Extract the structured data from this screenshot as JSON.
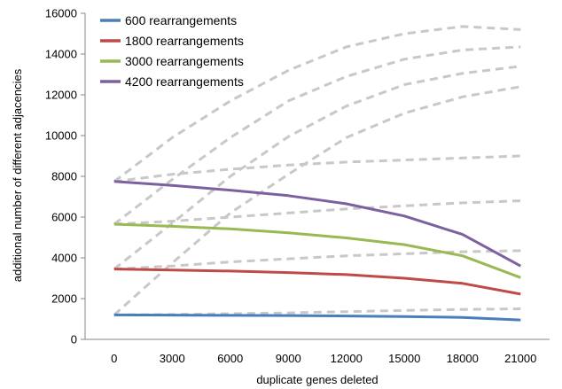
{
  "chart_data": {
    "type": "line",
    "title": "",
    "xlabel": "duplicate genes deleted",
    "ylabel": "additional number of different adjacencies",
    "x": [
      0,
      3000,
      6000,
      9000,
      12000,
      15000,
      18000,
      21000
    ],
    "ylim": [
      0,
      16000
    ],
    "yticks": [
      0,
      2000,
      4000,
      6000,
      8000,
      10000,
      12000,
      14000,
      16000
    ],
    "grid": false,
    "legend_position": "top-left",
    "series": [
      {
        "name": "600 rearrangements",
        "color": "#4A7EBB",
        "style": "solid",
        "values": [
          1200,
          1190,
          1180,
          1170,
          1150,
          1120,
          1080,
          950
        ]
      },
      {
        "name": "1800 rearrangements",
        "color": "#BE4B48",
        "style": "solid",
        "values": [
          3450,
          3400,
          3350,
          3280,
          3180,
          3000,
          2750,
          2220
        ]
      },
      {
        "name": "3000 rearrangements",
        "color": "#98B954",
        "style": "solid",
        "values": [
          5650,
          5550,
          5420,
          5230,
          4980,
          4650,
          4100,
          3030
        ]
      },
      {
        "name": "4200 rearrangements",
        "color": "#7D60A0",
        "style": "solid",
        "values": [
          7750,
          7550,
          7320,
          7050,
          6650,
          6050,
          5150,
          3600
        ]
      },
      {
        "color": "#C8C8C8",
        "style": "dashed",
        "values": [
          1200,
          1220,
          1260,
          1300,
          1360,
          1420,
          1470,
          1500
        ]
      },
      {
        "color": "#C8C8C8",
        "style": "dashed",
        "values": [
          1200,
          3750,
          6200,
          8100,
          9900,
          11100,
          11900,
          12400
        ]
      },
      {
        "color": "#C8C8C8",
        "style": "dashed",
        "values": [
          3450,
          3600,
          3800,
          3950,
          4100,
          4200,
          4300,
          4350
        ]
      },
      {
        "color": "#C8C8C8",
        "style": "dashed",
        "values": [
          3450,
          5700,
          8000,
          9950,
          11450,
          12500,
          13050,
          13400
        ]
      },
      {
        "color": "#C8C8C8",
        "style": "dashed",
        "values": [
          5650,
          5800,
          6000,
          6200,
          6400,
          6550,
          6700,
          6800
        ]
      },
      {
        "color": "#C8C8C8",
        "style": "dashed",
        "values": [
          5650,
          7850,
          9900,
          11700,
          12900,
          13750,
          14200,
          14350
        ]
      },
      {
        "color": "#C8C8C8",
        "style": "dashed",
        "values": [
          7750,
          8100,
          8350,
          8550,
          8700,
          8800,
          8900,
          9000
        ]
      },
      {
        "color": "#C8C8C8",
        "style": "dashed",
        "values": [
          7750,
          9900,
          11700,
          13200,
          14350,
          15000,
          15350,
          15200
        ]
      }
    ]
  }
}
